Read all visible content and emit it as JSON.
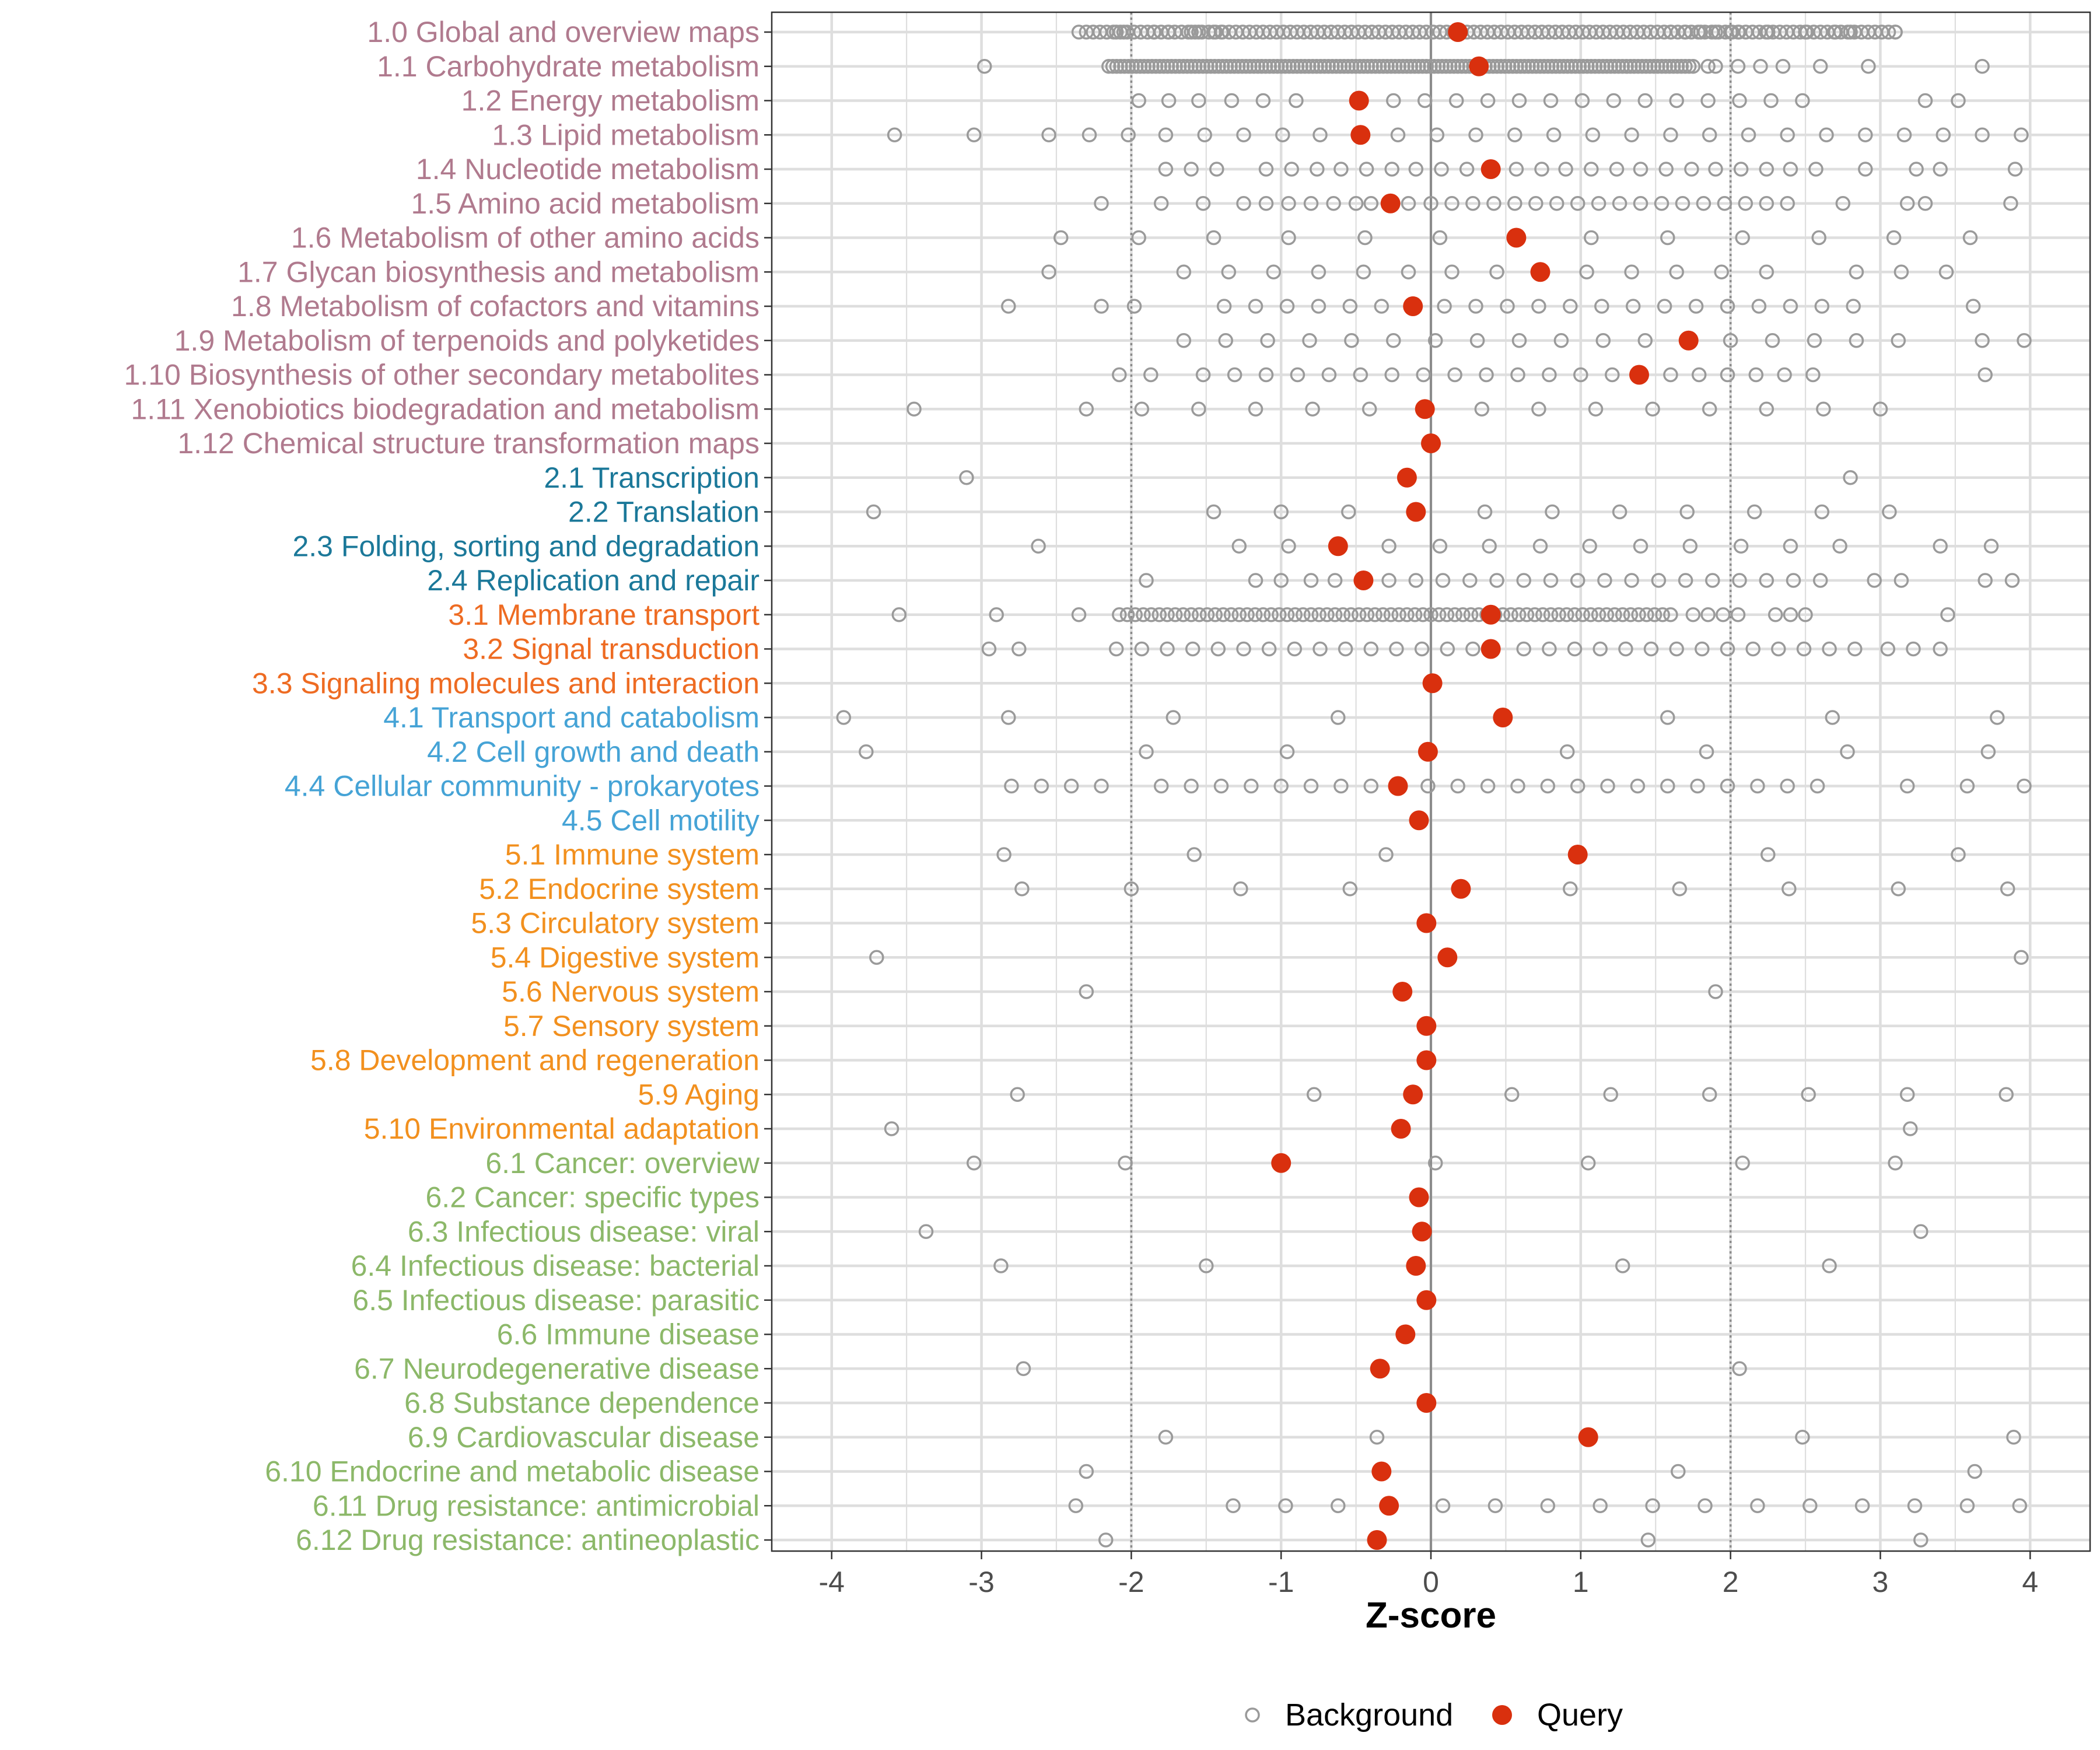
{
  "chart_data": {
    "type": "scatter",
    "xlabel": "Z-score",
    "xlim": [
      -4.4,
      4.4
    ],
    "xticks": [
      -4,
      -3,
      -2,
      -1,
      0,
      1,
      2,
      3,
      4
    ],
    "xtick_labels": [
      "-4",
      "-3",
      "-2",
      "-1",
      "0",
      "1",
      "2",
      "3",
      "4"
    ],
    "reference_lines": {
      "solid": [
        0
      ],
      "dotted": [
        -2,
        2
      ]
    },
    "grid": true,
    "legend": {
      "placement": "bottom",
      "background_label": "Background",
      "query_label": "Query"
    },
    "colors": {
      "background_point": "#9a9a9a",
      "query_point": "#d9300e",
      "group_1": "#b07a8e",
      "group_2": "#1b7899",
      "group_3": "#ee6b22",
      "group_4": "#45a3d6",
      "group_5": "#f2901e",
      "group_6": "#8cb869",
      "gridline": "#dedede",
      "zero_line": "#8c8c8c"
    },
    "categories": [
      {
        "label": "1.0 Global and overview maps",
        "group": 1,
        "query": 0.18,
        "range": [
          -2.3,
          3.1
        ],
        "n": 120,
        "bg": [
          -2.35,
          -2.1,
          -2.05,
          -1.85,
          -1.75,
          -1.6,
          -1.55,
          -1.45,
          -1.4,
          1.6,
          1.7,
          1.8,
          1.9,
          2.0,
          2.05,
          2.25,
          2.5,
          2.7,
          2.8,
          3.1
        ]
      },
      {
        "label": "1.1 Carbohydrate metabolism",
        "group": 1,
        "query": 0.32,
        "range": [
          -2.15,
          1.75
        ],
        "n": 150,
        "bg": [
          -2.98,
          1.85,
          1.9,
          2.05,
          2.2,
          2.35,
          2.6,
          2.92,
          3.68
        ]
      },
      {
        "label": "1.2 Energy metabolism",
        "group": 1,
        "query": -0.48,
        "bg": [
          -1.95,
          -1.75,
          -1.55,
          -1.33,
          -1.12,
          -0.9,
          -0.25,
          -0.04,
          0.17,
          0.38,
          0.59,
          0.8,
          1.01,
          1.22,
          1.43,
          1.64,
          1.85,
          2.06,
          2.27,
          2.48,
          3.3,
          3.52
        ]
      },
      {
        "label": "1.3 Lipid metabolism",
        "group": 1,
        "query": -0.47,
        "bg": [
          -3.58,
          -3.05,
          -2.55,
          -2.28,
          -2.02,
          -1.77,
          -1.51,
          -1.25,
          -0.99,
          -0.74,
          -0.22,
          0.04,
          0.3,
          0.56,
          0.82,
          1.08,
          1.34,
          1.6,
          1.86,
          2.12,
          2.38,
          2.64,
          2.9,
          3.16,
          3.42,
          3.68,
          3.94
        ]
      },
      {
        "label": "1.4 Nucleotide metabolism",
        "group": 1,
        "query": 0.4,
        "bg": [
          -1.77,
          -1.6,
          -1.43,
          -1.1,
          -0.93,
          -0.76,
          -0.6,
          -0.43,
          -0.26,
          -0.1,
          0.07,
          0.24,
          0.57,
          0.74,
          0.9,
          1.07,
          1.24,
          1.4,
          1.57,
          1.74,
          1.9,
          2.07,
          2.24,
          2.4,
          2.57,
          2.9,
          3.24,
          3.4,
          3.9
        ]
      },
      {
        "label": "1.5 Amino acid metabolism",
        "group": 1,
        "query": -0.27,
        "bg": [
          -2.2,
          -1.8,
          -1.52,
          -1.25,
          -1.1,
          -0.95,
          -0.8,
          -0.65,
          -0.5,
          -0.4,
          -0.15,
          0.0,
          0.14,
          0.28,
          0.42,
          0.56,
          0.7,
          0.84,
          0.98,
          1.12,
          1.26,
          1.4,
          1.54,
          1.68,
          1.82,
          1.96,
          2.1,
          2.24,
          2.38,
          2.75,
          3.18,
          3.3,
          3.87
        ]
      },
      {
        "label": "1.6 Metabolism of other amino acids",
        "group": 1,
        "query": 0.57,
        "bg": [
          -2.47,
          -1.95,
          -1.45,
          -0.95,
          -0.44,
          0.06,
          1.07,
          1.58,
          2.08,
          2.59,
          3.09,
          3.6
        ]
      },
      {
        "label": "1.7 Glycan biosynthesis and metabolism",
        "group": 1,
        "query": 0.73,
        "bg": [
          -2.55,
          -1.65,
          -1.35,
          -1.05,
          -0.75,
          -0.45,
          -0.15,
          0.14,
          0.44,
          1.04,
          1.34,
          1.64,
          1.94,
          2.24,
          2.84,
          3.14,
          3.44
        ]
      },
      {
        "label": "1.8 Metabolism of cofactors and vitamins",
        "group": 1,
        "query": -0.12,
        "bg": [
          -2.82,
          -2.2,
          -1.98,
          -1.38,
          -1.17,
          -0.96,
          -0.75,
          -0.54,
          -0.33,
          0.09,
          0.3,
          0.51,
          0.72,
          0.93,
          1.14,
          1.35,
          1.56,
          1.77,
          1.98,
          2.19,
          2.4,
          2.61,
          2.82,
          3.62
        ]
      },
      {
        "label": "1.9 Metabolism of terpenoids and polyketides",
        "group": 1,
        "query": 1.72,
        "bg": [
          -1.65,
          -1.37,
          -1.09,
          -0.81,
          -0.53,
          -0.25,
          0.03,
          0.31,
          0.59,
          0.87,
          1.15,
          1.43,
          2.0,
          2.28,
          2.56,
          2.84,
          3.12,
          3.68,
          3.96
        ]
      },
      {
        "label": "1.10 Biosynthesis of other secondary metabolites",
        "group": 1,
        "query": 1.39,
        "bg": [
          -2.08,
          -1.87,
          -1.52,
          -1.31,
          -1.1,
          -0.89,
          -0.68,
          -0.47,
          -0.26,
          -0.05,
          0.16,
          0.37,
          0.58,
          0.79,
          1.0,
          1.21,
          1.6,
          1.79,
          1.98,
          2.17,
          2.36,
          2.55,
          3.7
        ]
      },
      {
        "label": "1.11 Xenobiotics biodegradation and metabolism",
        "group": 1,
        "query": -0.04,
        "bg": [
          -3.45,
          -2.3,
          -1.93,
          -1.55,
          -1.17,
          -0.79,
          -0.41,
          0.34,
          0.72,
          1.1,
          1.48,
          1.86,
          2.24,
          2.62,
          3.0
        ]
      },
      {
        "label": "1.12 Chemical structure transformation maps",
        "group": 1,
        "query": 0.0,
        "bg": []
      },
      {
        "label": "2.1 Transcription",
        "group": 2,
        "query": -0.16,
        "bg": [
          -3.1,
          2.8
        ]
      },
      {
        "label": "2.2 Translation",
        "group": 2,
        "query": -0.1,
        "bg": [
          -3.72,
          -1.45,
          -1.0,
          -0.55,
          0.36,
          0.81,
          1.26,
          1.71,
          2.16,
          2.61,
          3.06
        ]
      },
      {
        "label": "2.3 Folding, sorting and degradation",
        "group": 2,
        "query": -0.62,
        "bg": [
          -2.62,
          -1.28,
          -0.95,
          -0.28,
          0.06,
          0.39,
          0.73,
          1.06,
          1.4,
          1.73,
          2.07,
          2.4,
          2.73,
          3.4,
          3.74
        ]
      },
      {
        "label": "2.4 Replication and repair",
        "group": 2,
        "query": -0.45,
        "bg": [
          -1.9,
          -1.17,
          -1.0,
          -0.8,
          -0.64,
          -0.28,
          -0.1,
          0.08,
          0.26,
          0.44,
          0.62,
          0.8,
          0.98,
          1.16,
          1.34,
          1.52,
          1.7,
          1.88,
          2.06,
          2.24,
          2.42,
          2.6,
          2.96,
          3.14,
          3.7,
          3.88
        ]
      },
      {
        "label": "3.1 Membrane transport",
        "group": 3,
        "query": 0.4,
        "range": [
          -2.08,
          1.6
        ],
        "n": 70,
        "bg": [
          -3.55,
          -2.9,
          -2.35,
          1.75,
          1.85,
          1.95,
          2.05,
          2.3,
          2.4,
          2.5,
          3.45
        ]
      },
      {
        "label": "3.2 Signal transduction",
        "group": 3,
        "query": 0.4,
        "bg": [
          -2.95,
          -2.75,
          -2.1,
          -1.93,
          -1.76,
          -1.59,
          -1.42,
          -1.25,
          -1.08,
          -0.91,
          -0.74,
          -0.57,
          -0.4,
          -0.23,
          -0.06,
          0.11,
          0.28,
          0.62,
          0.79,
          0.96,
          1.13,
          1.3,
          1.47,
          1.64,
          1.81,
          1.98,
          2.15,
          2.32,
          2.49,
          2.66,
          2.83,
          3.05,
          3.22,
          3.4
        ]
      },
      {
        "label": "3.3 Signaling molecules and interaction",
        "group": 3,
        "query": 0.01,
        "bg": []
      },
      {
        "label": "4.1 Transport and catabolism",
        "group": 4,
        "query": 0.48,
        "bg": [
          -3.92,
          -2.82,
          -1.72,
          -0.62,
          1.58,
          2.68,
          3.78
        ]
      },
      {
        "label": "4.2 Cell growth and death",
        "group": 4,
        "query": -0.02,
        "bg": [
          -3.77,
          -1.9,
          -0.96,
          0.91,
          1.84,
          2.78,
          3.72
        ]
      },
      {
        "label": "4.4 Cellular community - prokaryotes",
        "group": 4,
        "query": -0.22,
        "bg": [
          -2.8,
          -2.6,
          -2.4,
          -2.2,
          -1.8,
          -1.6,
          -1.4,
          -1.2,
          -1.0,
          -0.8,
          -0.6,
          -0.4,
          -0.02,
          0.18,
          0.38,
          0.58,
          0.78,
          0.98,
          1.18,
          1.38,
          1.58,
          1.78,
          1.98,
          2.18,
          2.38,
          2.58,
          3.18,
          3.58,
          3.96
        ]
      },
      {
        "label": "4.5 Cell motility",
        "group": 4,
        "query": -0.08,
        "bg": []
      },
      {
        "label": "5.1 Immune system",
        "group": 5,
        "query": 0.98,
        "bg": [
          -2.85,
          -1.58,
          -0.3,
          2.25,
          3.52
        ]
      },
      {
        "label": "5.2 Endocrine system",
        "group": 5,
        "query": 0.2,
        "bg": [
          -2.73,
          -2.0,
          -1.27,
          -0.54,
          0.93,
          1.66,
          2.39,
          3.12,
          3.85
        ]
      },
      {
        "label": "5.3 Circulatory system",
        "group": 5,
        "query": -0.03,
        "bg": []
      },
      {
        "label": "5.4 Digestive system",
        "group": 5,
        "query": 0.11,
        "bg": [
          -3.7,
          3.94
        ]
      },
      {
        "label": "5.6 Nervous system",
        "group": 5,
        "query": -0.19,
        "bg": [
          -2.3,
          1.9
        ]
      },
      {
        "label": "5.7 Sensory system",
        "group": 5,
        "query": -0.03,
        "bg": []
      },
      {
        "label": "5.8 Development and regeneration",
        "group": 5,
        "query": -0.03,
        "bg": []
      },
      {
        "label": "5.9 Aging",
        "group": 5,
        "query": -0.12,
        "bg": [
          -2.76,
          -0.78,
          0.54,
          1.2,
          1.86,
          2.52,
          3.18,
          3.84
        ]
      },
      {
        "label": "5.10 Environmental adaptation",
        "group": 5,
        "query": -0.2,
        "bg": [
          -3.6,
          3.2
        ]
      },
      {
        "label": "6.1 Cancer: overview",
        "group": 6,
        "query": -1.0,
        "bg": [
          -3.05,
          -2.04,
          0.03,
          1.05,
          2.08,
          3.1
        ]
      },
      {
        "label": "6.2 Cancer: specific types",
        "group": 6,
        "query": -0.08,
        "bg": []
      },
      {
        "label": "6.3 Infectious disease: viral",
        "group": 6,
        "query": -0.06,
        "bg": [
          -3.37,
          3.27
        ]
      },
      {
        "label": "6.4 Infectious disease: bacterial",
        "group": 6,
        "query": -0.1,
        "bg": [
          -2.87,
          -1.5,
          1.28,
          2.66
        ]
      },
      {
        "label": "6.5 Infectious disease: parasitic",
        "group": 6,
        "query": -0.03,
        "bg": []
      },
      {
        "label": "6.6 Immune disease",
        "group": 6,
        "query": -0.17,
        "bg": []
      },
      {
        "label": "6.7 Neurodegenerative disease",
        "group": 6,
        "query": -0.34,
        "bg": [
          -2.72,
          2.06
        ]
      },
      {
        "label": "6.8 Substance dependence",
        "group": 6,
        "query": -0.03,
        "bg": []
      },
      {
        "label": "6.9 Cardiovascular disease",
        "group": 6,
        "query": 1.05,
        "bg": [
          -1.77,
          -0.36,
          2.48,
          3.89
        ]
      },
      {
        "label": "6.10 Endocrine and metabolic disease",
        "group": 6,
        "query": -0.33,
        "bg": [
          -2.3,
          1.65,
          3.63
        ]
      },
      {
        "label": "6.11 Drug resistance: antimicrobial",
        "group": 6,
        "query": -0.28,
        "bg": [
          -2.37,
          -1.32,
          -0.97,
          -0.62,
          0.08,
          0.43,
          0.78,
          1.13,
          1.48,
          1.83,
          2.18,
          2.53,
          2.88,
          3.23,
          3.58,
          3.93
        ]
      },
      {
        "label": "6.12 Drug resistance: antineoplastic",
        "group": 6,
        "query": -0.36,
        "bg": [
          -2.17,
          1.45,
          3.27
        ]
      }
    ]
  }
}
